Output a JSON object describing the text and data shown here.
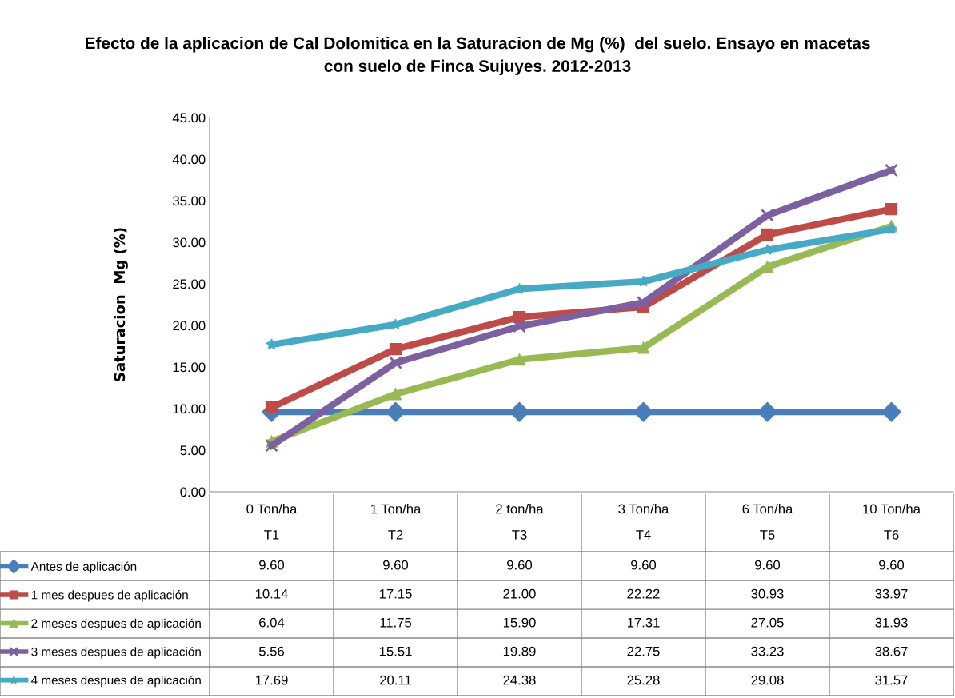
{
  "chart_data": {
    "type": "line",
    "title": "Efecto de la aplicacion de Cal Dolomitica en la Saturacion de Mg (%)  del suelo. Ensayo en macetas\ncon suelo de Finca Sujuyes. 2012-2013",
    "ylabel": "Saturacion  Mg (%)",
    "categories": [
      "0 Ton/ha\nT1",
      "1 Ton/ha\nT2",
      "2 ton/ha\nT3",
      "3 Ton/ha\nT4",
      "6 Ton/ha\nT5",
      "10 Ton/ha\nT6"
    ],
    "ylim": [
      0,
      45
    ],
    "yticks": [
      {
        "value": 0,
        "label": "0.00"
      },
      {
        "value": 5,
        "label": "5.00"
      },
      {
        "value": 10,
        "label": "10.00"
      },
      {
        "value": 15,
        "label": "15.00"
      },
      {
        "value": 20,
        "label": "20.00"
      },
      {
        "value": 25,
        "label": "25.00"
      },
      {
        "value": 30,
        "label": "30.00"
      },
      {
        "value": 35,
        "label": "35.00"
      },
      {
        "value": 40,
        "label": "40.00"
      },
      {
        "value": 45,
        "label": "45.00"
      }
    ],
    "grid": false,
    "legend": "bottom left",
    "series": [
      {
        "name": "Antes de aplicación",
        "color": "#4a7ebb",
        "marker": "diamond",
        "values": [
          9.6,
          9.6,
          9.6,
          9.6,
          9.6,
          9.6
        ],
        "value_labels": [
          "9.60",
          "9.60",
          "9.60",
          "9.60",
          "9.60",
          "9.60"
        ]
      },
      {
        "name": "1 mes despues de aplicación",
        "color": "#be4b48",
        "marker": "square",
        "values": [
          10.14,
          17.15,
          21.0,
          22.22,
          30.93,
          33.97
        ],
        "value_labels": [
          "10.14",
          "17.15",
          "21.00",
          "22.22",
          "30.93",
          "33.97"
        ]
      },
      {
        "name": "2 meses despues de aplicación",
        "color": "#98b954",
        "marker": "triangle",
        "values": [
          6.04,
          11.75,
          15.9,
          17.31,
          27.05,
          31.93
        ],
        "value_labels": [
          "6.04",
          "11.75",
          "15.90",
          "17.31",
          "27.05",
          "31.93"
        ]
      },
      {
        "name": "3 meses despues de aplicación",
        "color": "#7d60a0",
        "marker": "cross",
        "values": [
          5.56,
          15.51,
          19.89,
          22.75,
          33.23,
          38.67
        ],
        "value_labels": [
          "5.56",
          "15.51",
          "19.89",
          "22.75",
          "33.23",
          "38.67"
        ]
      },
      {
        "name": "4 meses despues de aplicación",
        "color": "#46aac5",
        "marker": "star",
        "values": [
          17.69,
          20.11,
          24.38,
          25.28,
          29.08,
          31.57
        ],
        "value_labels": [
          "17.69",
          "20.11",
          "24.38",
          "25.28",
          "29.08",
          "31.57"
        ]
      }
    ]
  }
}
